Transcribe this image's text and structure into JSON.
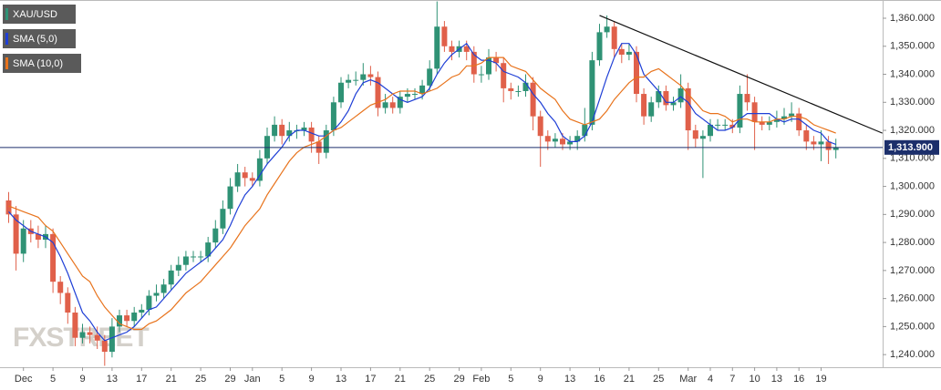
{
  "chart_data": {
    "type": "candlestick",
    "name": "XAU/USD",
    "watermark": "FXSTREET",
    "up_color": "#2f9275",
    "down_color": "#e0604a",
    "categories": [
      null,
      null,
      "Dec",
      null,
      null,
      null,
      "5",
      null,
      null,
      null,
      "9",
      null,
      null,
      null,
      "13",
      null,
      null,
      null,
      "17",
      null,
      null,
      null,
      "21",
      null,
      null,
      null,
      "25",
      null,
      null,
      null,
      "29",
      null,
      null,
      "Jan",
      null,
      null,
      null,
      "5",
      null,
      null,
      null,
      "9",
      null,
      null,
      null,
      "13",
      null,
      null,
      null,
      "17",
      null,
      null,
      null,
      "21",
      null,
      null,
      null,
      "25",
      null,
      null,
      null,
      "29",
      null,
      null,
      "Feb",
      null,
      null,
      null,
      "5",
      null,
      null,
      null,
      "9",
      null,
      null,
      null,
      "13",
      null,
      null,
      null,
      "16",
      null,
      null,
      null,
      "21",
      null,
      null,
      null,
      "25",
      null,
      null,
      null,
      "Mar",
      null,
      null,
      "4",
      null,
      null,
      "7",
      null,
      null,
      "10",
      null,
      null,
      "13",
      null,
      null,
      "16",
      null,
      null,
      "19",
      null,
      null
    ],
    "open": [
      1295,
      1290,
      1276,
      1285,
      1283,
      1281,
      1283,
      1266,
      1262,
      1255,
      1246,
      1248,
      1247,
      1245,
      1241,
      1250,
      1254,
      1252,
      1255,
      1256,
      1261,
      1262,
      1265,
      1270,
      1272,
      1275,
      1275,
      1275,
      1280,
      1285,
      1292,
      1300,
      1305,
      1303,
      1302,
      1310,
      1318,
      1322,
      1318,
      1320,
      1320,
      1321,
      1316,
      1312,
      1320,
      1330,
      1337,
      1338,
      1338,
      1340,
      1339,
      1328,
      1330,
      1328,
      1332,
      1333,
      1333,
      1336,
      1342,
      1357,
      1350,
      1348,
      1350,
      1348,
      1340,
      1340,
      1346,
      1344,
      1335,
      1334,
      1334,
      1337,
      1325,
      1318,
      1316,
      1317,
      1315,
      1316,
      1318,
      1322,
      1345,
      1355,
      1357,
      1349,
      1347,
      1348,
      1333,
      1325,
      1330,
      1334,
      1329,
      1330,
      1335,
      1320,
      1317,
      1318,
      1322,
      1322,
      1322,
      1321,
      1333,
      1330,
      1323,
      1322,
      1323,
      1324,
      1325,
      1326,
      1320,
      1316,
      1315,
      1316,
      1313
    ],
    "high": [
      1298,
      1293,
      1288,
      1288,
      1286,
      1286,
      1285,
      1268,
      1264,
      1257,
      1251,
      1250,
      1250,
      1247,
      1253,
      1256,
      1256,
      1257,
      1258,
      1263,
      1265,
      1267,
      1272,
      1275,
      1277,
      1277,
      1277,
      1282,
      1288,
      1295,
      1303,
      1308,
      1307,
      1305,
      1313,
      1321,
      1325,
      1324,
      1323,
      1322,
      1323,
      1323,
      1318,
      1322,
      1332,
      1339,
      1340,
      1341,
      1344,
      1343,
      1341,
      1333,
      1332,
      1334,
      1335,
      1335,
      1338,
      1345,
      1366,
      1359,
      1352,
      1352,
      1352,
      1350,
      1343,
      1349,
      1348,
      1346,
      1337,
      1336,
      1340,
      1339,
      1327,
      1320,
      1319,
      1319,
      1318,
      1320,
      1328,
      1348,
      1358,
      1361,
      1359,
      1351,
      1351,
      1350,
      1335,
      1332,
      1336,
      1336,
      1332,
      1340,
      1337,
      1322,
      1320,
      1324,
      1324,
      1324,
      1324,
      1336,
      1340,
      1332,
      1325,
      1325,
      1327,
      1328,
      1330,
      1328,
      1322,
      1318,
      1320,
      1318,
      1317
    ],
    "low": [
      1287,
      1270,
      1273,
      1280,
      1278,
      1278,
      1262,
      1258,
      1251,
      1243,
      1244,
      1244,
      1242,
      1236,
      1239,
      1248,
      1250,
      1250,
      1253,
      1254,
      1259,
      1260,
      1263,
      1268,
      1270,
      1273,
      1273,
      1273,
      1278,
      1283,
      1290,
      1298,
      1300,
      1300,
      1300,
      1308,
      1316,
      1315,
      1316,
      1317,
      1318,
      1312,
      1308,
      1310,
      1318,
      1328,
      1335,
      1336,
      1336,
      1336,
      1325,
      1326,
      1326,
      1326,
      1330,
      1331,
      1331,
      1334,
      1340,
      1348,
      1345,
      1346,
      1345,
      1337,
      1337,
      1338,
      1341,
      1330,
      1331,
      1332,
      1332,
      1320,
      1307,
      1313,
      1314,
      1313,
      1313,
      1313,
      1316,
      1320,
      1343,
      1353,
      1346,
      1344,
      1345,
      1330,
      1322,
      1323,
      1328,
      1327,
      1327,
      1328,
      1313,
      1314,
      1303,
      1316,
      1320,
      1320,
      1319,
      1319,
      1327,
      1313,
      1320,
      1320,
      1321,
      1322,
      1323,
      1318,
      1313,
      1313,
      1309,
      1308,
      1310
    ],
    "close": [
      1290,
      1276,
      1285,
      1283,
      1281,
      1283,
      1266,
      1262,
      1255,
      1246,
      1248,
      1247,
      1245,
      1241,
      1250,
      1254,
      1252,
      1255,
      1256,
      1261,
      1262,
      1265,
      1270,
      1272,
      1275,
      1275,
      1275,
      1280,
      1285,
      1292,
      1300,
      1305,
      1303,
      1302,
      1310,
      1318,
      1322,
      1318,
      1320,
      1320,
      1321,
      1316,
      1312,
      1320,
      1330,
      1337,
      1338,
      1338,
      1340,
      1339,
      1328,
      1330,
      1328,
      1332,
      1333,
      1333,
      1336,
      1342,
      1357,
      1350,
      1348,
      1350,
      1348,
      1340,
      1340,
      1346,
      1344,
      1335,
      1334,
      1334,
      1337,
      1325,
      1318,
      1316,
      1317,
      1315,
      1316,
      1318,
      1322,
      1345,
      1355,
      1357,
      1349,
      1347,
      1348,
      1333,
      1325,
      1330,
      1334,
      1329,
      1330,
      1335,
      1320,
      1317,
      1318,
      1322,
      1322,
      1322,
      1321,
      1333,
      1330,
      1323,
      1322,
      1323,
      1324,
      1325,
      1326,
      1320,
      1316,
      1315,
      1316,
      1313,
      1314
    ],
    "series": [
      {
        "name": "SMA (5,0)",
        "color": "#1f3fd6",
        "values": [
          1291,
          1288,
          1286,
          1284,
          1283,
          1282,
          1280,
          1275,
          1269,
          1262,
          1255,
          1252,
          1248,
          1245,
          1246,
          1247,
          1248,
          1250,
          1253,
          1256,
          1257,
          1260,
          1263,
          1266,
          1269,
          1271,
          1273,
          1275,
          1278,
          1281,
          1286,
          1292,
          1297,
          1300,
          1304,
          1308,
          1311,
          1314,
          1318,
          1320,
          1320,
          1319,
          1318,
          1318,
          1320,
          1323,
          1327,
          1333,
          1337,
          1338,
          1337,
          1335,
          1333,
          1331,
          1330,
          1331,
          1332,
          1335,
          1340,
          1344,
          1347,
          1349,
          1351,
          1347,
          1345,
          1345,
          1344,
          1341,
          1340,
          1339,
          1337,
          1333,
          1330,
          1326,
          1323,
          1318,
          1316,
          1316,
          1318,
          1323,
          1331,
          1339,
          1346,
          1351,
          1351,
          1347,
          1340,
          1337,
          1334,
          1330,
          1330,
          1332,
          1330,
          1326,
          1324,
          1322,
          1320,
          1320,
          1321,
          1324,
          1326,
          1326,
          1326,
          1326,
          1324,
          1323,
          1324,
          1324,
          1322,
          1320,
          1319,
          1316,
          1315
        ]
      },
      {
        "name": "SMA (10,0)",
        "color": "#e8731c",
        "values": [
          1293,
          1292,
          1291,
          1290,
          1289,
          1286,
          1284,
          1280,
          1276,
          1272,
          1268,
          1266,
          1261,
          1257,
          1254,
          1251,
          1250,
          1249,
          1249,
          1251,
          1252,
          1254,
          1256,
          1259,
          1262,
          1264,
          1266,
          1269,
          1272,
          1275,
          1278,
          1282,
          1286,
          1289,
          1292,
          1297,
          1301,
          1305,
          1309,
          1312,
          1314,
          1315,
          1316,
          1318,
          1320,
          1321,
          1323,
          1325,
          1327,
          1329,
          1330,
          1331,
          1333,
          1334,
          1334,
          1334,
          1333,
          1334,
          1335,
          1337,
          1339,
          1340,
          1343,
          1343,
          1344,
          1346,
          1346,
          1346,
          1343,
          1342,
          1341,
          1338,
          1335,
          1333,
          1331,
          1327,
          1324,
          1323,
          1322,
          1323,
          1324,
          1327,
          1331,
          1334,
          1337,
          1339,
          1339,
          1341,
          1342,
          1340,
          1338,
          1336,
          1333,
          1330,
          1327,
          1326,
          1326,
          1325,
          1323,
          1324,
          1324,
          1323,
          1323,
          1323,
          1324,
          1324,
          1325,
          1325,
          1324,
          1322,
          1321,
          1320,
          1319
        ]
      }
    ],
    "trendline": {
      "color": "#111111",
      "points": [
        {
          "x": 80,
          "y": 1361
        },
        {
          "x": 118.3,
          "y": 1319
        }
      ]
    },
    "last_price": {
      "value": 1313.9,
      "label": "1,313.900",
      "color": "#1c2f6b"
    },
    "ylim": [
      1235.5,
      1366.5
    ],
    "yticks": [
      {
        "value": 1240,
        "label": "1,240.000"
      },
      {
        "value": 1250,
        "label": "1,250.000"
      },
      {
        "value": 1260,
        "label": "1,260.000"
      },
      {
        "value": 1270,
        "label": "1,270.000"
      },
      {
        "value": 1280,
        "label": "1,280.000"
      },
      {
        "value": 1290,
        "label": "1,290.000"
      },
      {
        "value": 1300,
        "label": "1,300.000"
      },
      {
        "value": 1310,
        "label": "1,310.000"
      },
      {
        "value": 1320,
        "label": "1,320.000"
      },
      {
        "value": 1330,
        "label": "1,330.000"
      },
      {
        "value": 1340,
        "label": "1,340.000"
      },
      {
        "value": 1350,
        "label": "1,350.000"
      },
      {
        "value": 1360,
        "label": "1,360.000"
      }
    ],
    "grid": false
  }
}
